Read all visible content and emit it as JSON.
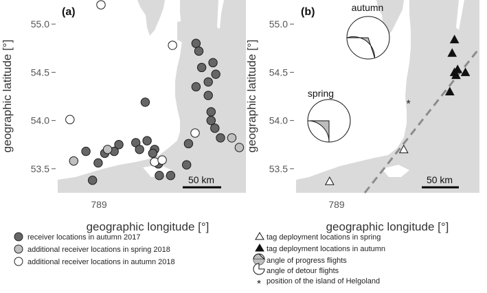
{
  "chart_data": [
    {
      "type": "scatter",
      "panel": "(a)",
      "xlabel": "geographic longitude [°]",
      "ylabel": "geographic latitude [°]",
      "x_tick_labels": [
        "789"
      ],
      "y_ticks": [
        53.5,
        54.0,
        54.5,
        55.0
      ],
      "y_tick_labels": [
        "53.5",
        "54.0",
        "54.5",
        "55.0"
      ],
      "ylim": [
        53.25,
        55.25
      ],
      "scale_bar": "50 km",
      "series": [
        {
          "name": "receiver locations in autumn 2017",
          "color": "#666666",
          "points": [
            {
              "x": 6.75,
              "y": 53.68
            },
            {
              "x": 6.82,
              "y": 53.38
            },
            {
              "x": 6.88,
              "y": 53.56
            },
            {
              "x": 6.95,
              "y": 53.66
            },
            {
              "x": 7.05,
              "y": 53.68
            },
            {
              "x": 7.1,
              "y": 53.75
            },
            {
              "x": 7.28,
              "y": 53.77
            },
            {
              "x": 7.32,
              "y": 53.7
            },
            {
              "x": 7.4,
              "y": 53.79
            },
            {
              "x": 7.38,
              "y": 54.19
            },
            {
              "x": 7.48,
              "y": 53.7
            },
            {
              "x": 7.46,
              "y": 53.66
            },
            {
              "x": 7.52,
              "y": 53.55
            },
            {
              "x": 7.53,
              "y": 53.43
            },
            {
              "x": 7.65,
              "y": 53.43
            },
            {
              "x": 7.82,
              "y": 53.54
            },
            {
              "x": 7.84,
              "y": 53.76
            },
            {
              "x": 7.92,
              "y": 54.8
            },
            {
              "x": 7.95,
              "y": 54.72
            },
            {
              "x": 7.92,
              "y": 54.35
            },
            {
              "x": 7.98,
              "y": 54.55
            },
            {
              "x": 8.05,
              "y": 54.4
            },
            {
              "x": 8.05,
              "y": 54.26
            },
            {
              "x": 8.1,
              "y": 54.6
            },
            {
              "x": 8.13,
              "y": 54.48
            },
            {
              "x": 8.08,
              "y": 54.09
            },
            {
              "x": 8.08,
              "y": 54.0
            },
            {
              "x": 8.12,
              "y": 53.92
            },
            {
              "x": 8.18,
              "y": 53.82
            }
          ]
        },
        {
          "name": "additional receiver locations in spring 2018",
          "color": "#c0c0c0",
          "points": [
            {
              "x": 6.62,
              "y": 53.58
            },
            {
              "x": 6.98,
              "y": 53.7
            },
            {
              "x": 8.3,
              "y": 53.82
            },
            {
              "x": 8.38,
              "y": 53.72
            }
          ]
        },
        {
          "name": "additional receiver locations in autumn 2018",
          "color": "#ffffff",
          "points": [
            {
              "x": 6.91,
              "y": 55.2
            },
            {
              "x": 6.58,
              "y": 54.01
            },
            {
              "x": 7.67,
              "y": 54.78
            },
            {
              "x": 7.48,
              "y": 53.57
            },
            {
              "x": 7.56,
              "y": 53.59
            },
            {
              "x": 7.91,
              "y": 53.87
            }
          ]
        }
      ]
    },
    {
      "type": "scatter",
      "panel": "(b)",
      "xlabel": "geographic longitude [°]",
      "ylabel": "geographic latitude [°]",
      "x_tick_labels": [
        "789"
      ],
      "y_ticks": [
        53.5,
        54.0,
        54.5,
        55.0
      ],
      "y_tick_labels": [
        "53.5",
        "54.0",
        "54.5",
        "55.0"
      ],
      "ylim": [
        53.25,
        55.25
      ],
      "scale_bar": "50 km",
      "series": [
        {
          "name": "tag deployment locations in spring",
          "marker": "triangle-open",
          "points": [
            {
              "x": 6.88,
              "y": 53.37
            },
            {
              "x": 7.83,
              "y": 53.7
            }
          ]
        },
        {
          "name": "tag deployment locations in autumn",
          "marker": "triangle-filled",
          "points": [
            {
              "x": 8.48,
              "y": 54.84
            },
            {
              "x": 8.45,
              "y": 54.7
            },
            {
              "x": 8.52,
              "y": 54.53
            },
            {
              "x": 8.48,
              "y": 54.5
            },
            {
              "x": 8.5,
              "y": 54.47
            },
            {
              "x": 8.62,
              "y": 54.5
            },
            {
              "x": 8.42,
              "y": 54.3
            }
          ]
        },
        {
          "name": "position of the island of Helgoland",
          "marker": "asterisk",
          "points": [
            {
              "x": 7.89,
              "y": 54.18
            }
          ]
        }
      ],
      "pies": [
        {
          "label": "autumn",
          "progress_fraction": 0.3,
          "detour_fraction": 0.7
        },
        {
          "label": "spring",
          "progress_fraction": 0.25,
          "detour_fraction": 0.75
        }
      ]
    }
  ],
  "legend_left": [
    {
      "label": "receiver locations in autumn 2017",
      "fill": "#666666"
    },
    {
      "label": "additional receiver locations in spring 2018",
      "fill": "#c0c0c0"
    },
    {
      "label": "additional receiver locations in autumn 2018",
      "fill": "#ffffff"
    }
  ],
  "legend_right": [
    {
      "label": "tag deployment locations in spring",
      "icon": "triangle-open"
    },
    {
      "label": "tag deployment locations in autumn",
      "icon": "triangle-filled"
    },
    {
      "label": "angle of progress flights",
      "icon": "pie-progress"
    },
    {
      "label": "angle of detour flights",
      "icon": "pie-detour"
    },
    {
      "label": "position of the island of Helgoland",
      "icon": "asterisk"
    }
  ],
  "colors": {
    "land": "#dadada",
    "sea": "#ffffff",
    "progress": "#bdbdbd",
    "dash_line": "#8c8c8c"
  }
}
